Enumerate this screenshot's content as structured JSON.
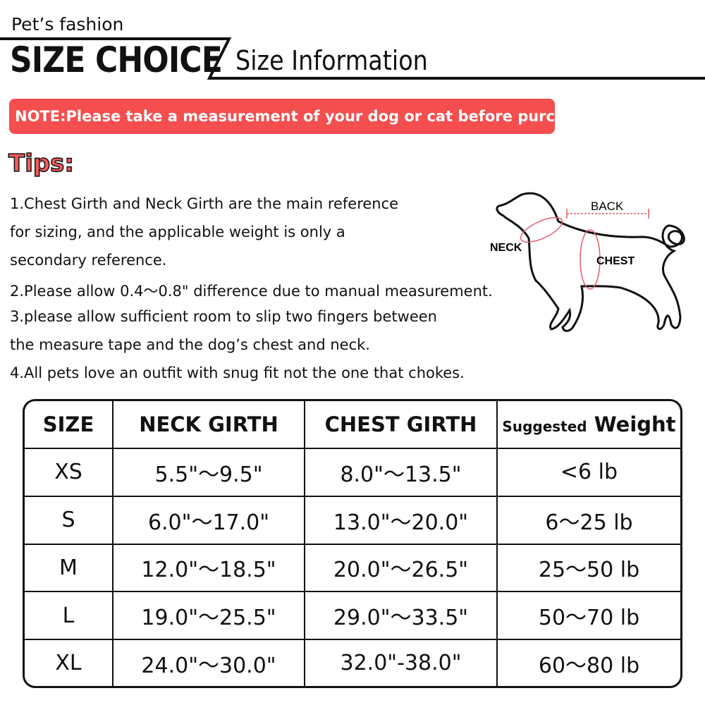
{
  "header": {
    "brand": "Pet’s fashion",
    "title": "SIZE CHOICE",
    "subtitle": "Size Information"
  },
  "note": "NOTE:Please take a measurement of your dog or cat before purchasing",
  "accent_color": "#f44e4e",
  "tips": {
    "label": "Tips:",
    "lines": [
      "1.Chest Girth and Neck Girth are the main reference",
      "for sizing, and the applicable weight is only a",
      "secondary reference.",
      "2.Please allow 0.4～0.8\" difference due to manual measurement.",
      "3.please allow sufficient room to slip two fingers between",
      "the measure tape and the dog’s chest and neck.",
      "4.All pets love an outfit with snug fit not the one that chokes."
    ]
  },
  "diagram": {
    "back": "BACK",
    "neck": "NECK",
    "chest": "CHEST"
  },
  "table": {
    "headers": {
      "size": "SIZE",
      "neck": "NECK GIRTH",
      "chest": "CHEST GIRTH",
      "weight_small": "Suggested",
      "weight_big": "Weight"
    },
    "rows": [
      [
        "XS",
        "5.5\"～9.5\"",
        "8.0\"～13.5\"",
        "<6 lb"
      ],
      [
        "S",
        "6.0\"～17.0\"",
        "13.0\"～20.0\"",
        "6～25 lb"
      ],
      [
        "M",
        "12.0\"～18.5\"",
        "20.0\"～26.5\"",
        "25～50 lb"
      ],
      [
        "L",
        "19.0\"～25.5\"",
        "29.0\"～33.5\"",
        "50～70 lb"
      ],
      [
        "XL",
        "24.0\"～30.0\"",
        "32.0\"-38.0\"",
        "60～80 lb"
      ]
    ]
  }
}
